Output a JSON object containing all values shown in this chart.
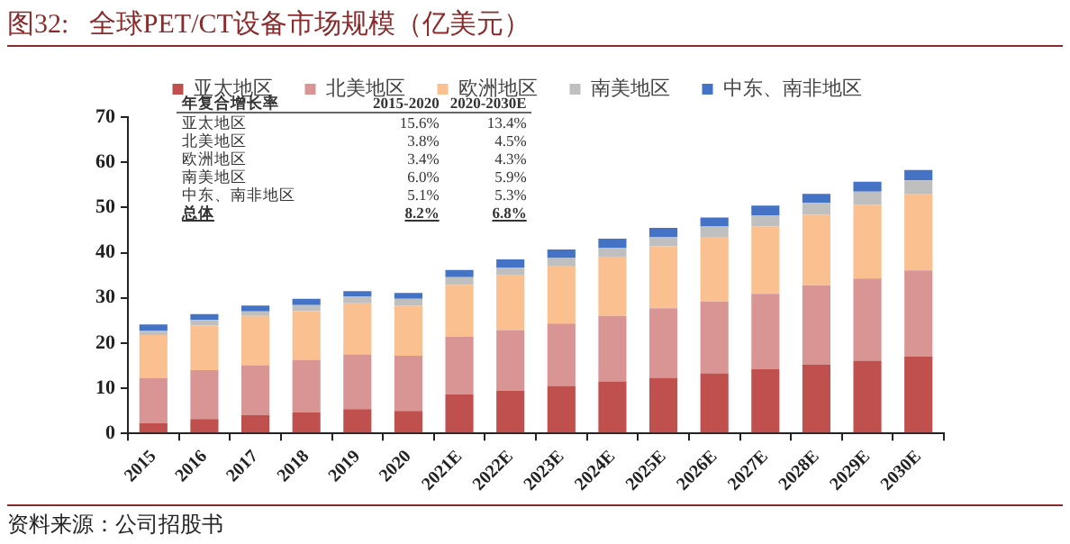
{
  "chart_data": {
    "type": "bar",
    "stacked": true,
    "title": "图32:   全球PET/CT设备市场规模（亿美元）",
    "categories": [
      "2015",
      "2016",
      "2017",
      "2018",
      "2019",
      "2020",
      "2021E",
      "2022E",
      "2023E",
      "2024E",
      "2025E",
      "2026E",
      "2027E",
      "2028E",
      "2029E",
      "2030E"
    ],
    "series": [
      {
        "name": "亚太地区",
        "color": "#c0504d",
        "values": [
          2.3,
          3.2,
          4.1,
          4.7,
          5.4,
          5.0,
          8.7,
          9.5,
          10.5,
          11.5,
          12.3,
          13.3,
          14.2,
          15.2,
          16.1,
          17.0
        ]
      },
      {
        "name": "北美地区",
        "color": "#d99594",
        "values": [
          10.0,
          10.8,
          11.0,
          11.6,
          12.1,
          12.2,
          12.7,
          13.4,
          13.8,
          14.5,
          15.4,
          15.9,
          16.7,
          17.6,
          18.2,
          19.1
        ]
      },
      {
        "name": "欧洲地区",
        "color": "#fac090",
        "values": [
          9.5,
          9.9,
          10.9,
          10.8,
          11.3,
          11.1,
          11.5,
          12.1,
          12.8,
          13.1,
          13.7,
          14.3,
          14.9,
          15.6,
          16.3,
          16.8
        ]
      },
      {
        "name": "南美地区",
        "color": "#bfbfbf",
        "values": [
          1.0,
          1.2,
          1.0,
          1.3,
          1.5,
          1.5,
          1.7,
          1.7,
          1.7,
          2.0,
          2.1,
          2.3,
          2.5,
          2.6,
          2.9,
          3.1
        ]
      },
      {
        "name": "中东、南非地区",
        "color": "#4472c4",
        "values": [
          1.3,
          1.3,
          1.3,
          1.4,
          1.2,
          1.3,
          1.6,
          1.8,
          1.9,
          2.0,
          2.0,
          2.0,
          2.1,
          2.0,
          2.2,
          2.3
        ]
      }
    ],
    "ylim": [
      0,
      70
    ],
    "yticks": [
      0,
      10,
      20,
      30,
      40,
      50,
      60,
      70
    ],
    "grid": false,
    "legend": "top",
    "annotations": [
      "年复合增长率",
      "2015-2020",
      "2020-2030E",
      "亚太地区",
      "15.6%",
      "13.4%",
      "北美地区",
      "3.8%",
      "4.5%",
      "欧洲地区",
      "3.4%",
      "4.3%",
      "南美地区",
      "6.0%",
      "5.9%",
      "中东、南非地区",
      "5.1%",
      "5.3%",
      "总体",
      "8.2%",
      "6.8%",
      "资料来源：公司招股书"
    ]
  }
}
